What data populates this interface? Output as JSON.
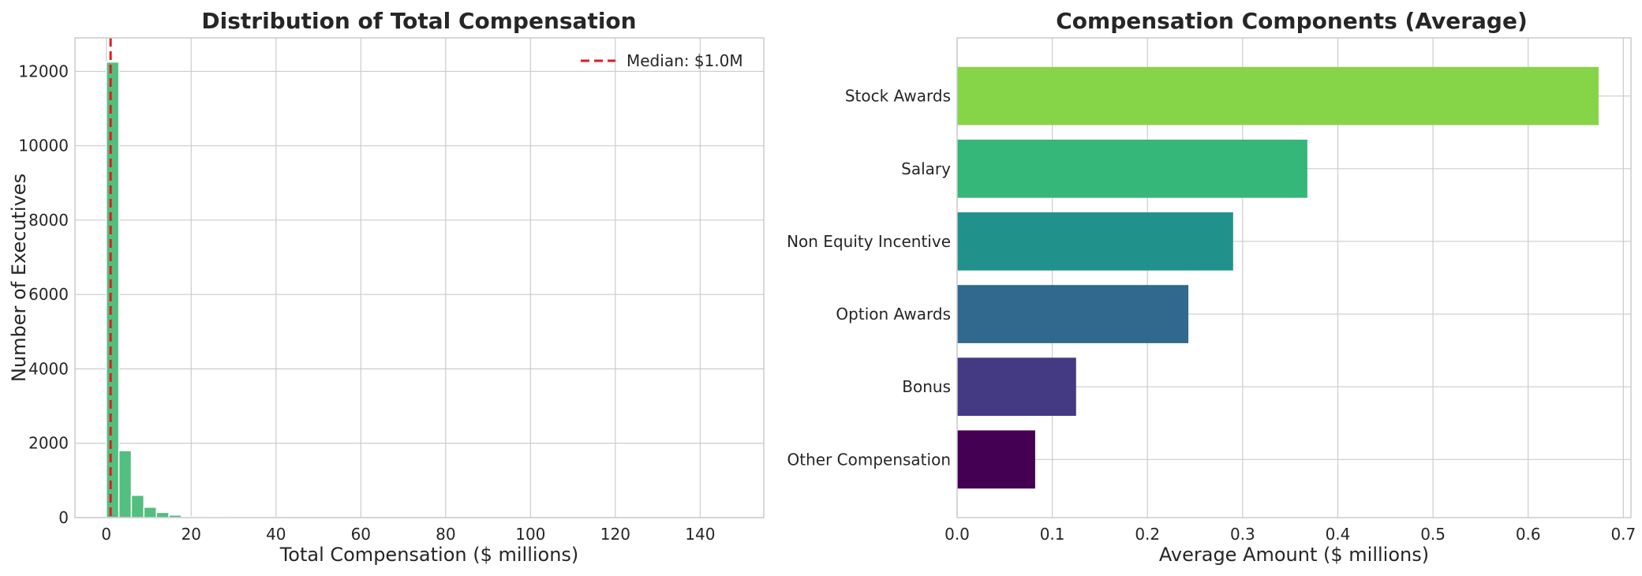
{
  "chart_data": [
    {
      "type": "bar",
      "title": "Distribution of Total Compensation",
      "xlabel": "Total Compensation ($ millions)",
      "ylabel": "Number of Executives",
      "xlim": [
        -7.4,
        155
      ],
      "ylim": [
        0,
        12900
      ],
      "xticks": [
        0,
        20,
        40,
        60,
        80,
        100,
        120,
        140
      ],
      "yticks": [
        0,
        2000,
        4000,
        6000,
        8000,
        10000,
        12000
      ],
      "bin_width": 2.95,
      "bins": [
        {
          "x0": 0.0,
          "count": 12250
        },
        {
          "x0": 2.95,
          "count": 1800
        },
        {
          "x0": 5.9,
          "count": 600
        },
        {
          "x0": 8.85,
          "count": 280
        },
        {
          "x0": 11.8,
          "count": 140
        },
        {
          "x0": 14.75,
          "count": 70
        },
        {
          "x0": 17.7,
          "count": 30
        },
        {
          "x0": 20.65,
          "count": 15
        },
        {
          "x0": 23.6,
          "count": 8
        },
        {
          "x0": 26.55,
          "count": 5
        },
        {
          "x0": 29.5,
          "count": 3
        },
        {
          "x0": 32.45,
          "count": 2
        },
        {
          "x0": 35.4,
          "count": 1
        },
        {
          "x0": 38.35,
          "count": 1
        }
      ],
      "bar_color": "#52be80",
      "median": {
        "value": 1.0,
        "label": "Median: $1.0M",
        "color": "#e41a1c"
      },
      "grid": true,
      "legend_position": "top-right"
    },
    {
      "type": "bar",
      "orientation": "horizontal",
      "title": "Compensation Components (Average)",
      "xlabel": "Average Amount ($ millions)",
      "ylabel": "",
      "xlim": [
        0,
        0.708
      ],
      "xticks": [
        0.0,
        0.1,
        0.2,
        0.3,
        0.4,
        0.5,
        0.6,
        0.7
      ],
      "xtick_labels": [
        "0.0",
        "0.1",
        "0.2",
        "0.3",
        "0.4",
        "0.5",
        "0.6",
        "0.7"
      ],
      "categories": [
        "Stock Awards",
        "Salary",
        "Non Equity Incentive",
        "Option Awards",
        "Bonus",
        "Other Compensation"
      ],
      "values": [
        0.674,
        0.368,
        0.29,
        0.243,
        0.125,
        0.082
      ],
      "colors": [
        "#86d549",
        "#35b779",
        "#21918c",
        "#31688e",
        "#443983",
        "#440154"
      ],
      "grid": true
    }
  ]
}
